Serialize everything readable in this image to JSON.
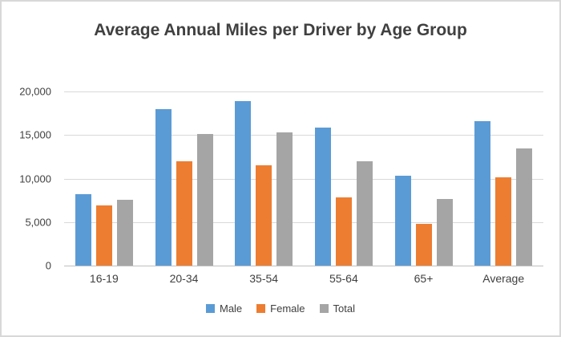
{
  "chart_data": {
    "type": "bar",
    "title": "Average Annual Miles per Driver by Age Group",
    "categories": [
      "16-19",
      "20-34",
      "35-54",
      "55-64",
      "65+",
      "Average"
    ],
    "series": [
      {
        "name": "Male",
        "color": "#5b9bd5",
        "values": [
          8200,
          18000,
          18850,
          15850,
          10300,
          16550
        ]
      },
      {
        "name": "Female",
        "color": "#ed7d31",
        "values": [
          6900,
          12000,
          11500,
          7800,
          4800,
          10100
        ]
      },
      {
        "name": "Total",
        "color": "#a5a5a5",
        "values": [
          7600,
          15100,
          15300,
          11950,
          7650,
          13450
        ]
      }
    ],
    "ylim": [
      0,
      20000
    ],
    "yticks": [
      0,
      5000,
      10000,
      15000,
      20000
    ],
    "ytick_labels": [
      "0",
      "5,000",
      "10,000",
      "15,000",
      "20,000"
    ],
    "grid": true,
    "legend_position": "bottom",
    "colors": {
      "title_text": "#404040",
      "axis_text": "#404040",
      "gridline": "#d9d9d9",
      "axis_line": "#bfbfbf",
      "frame_border": "#d8d8d8"
    }
  }
}
